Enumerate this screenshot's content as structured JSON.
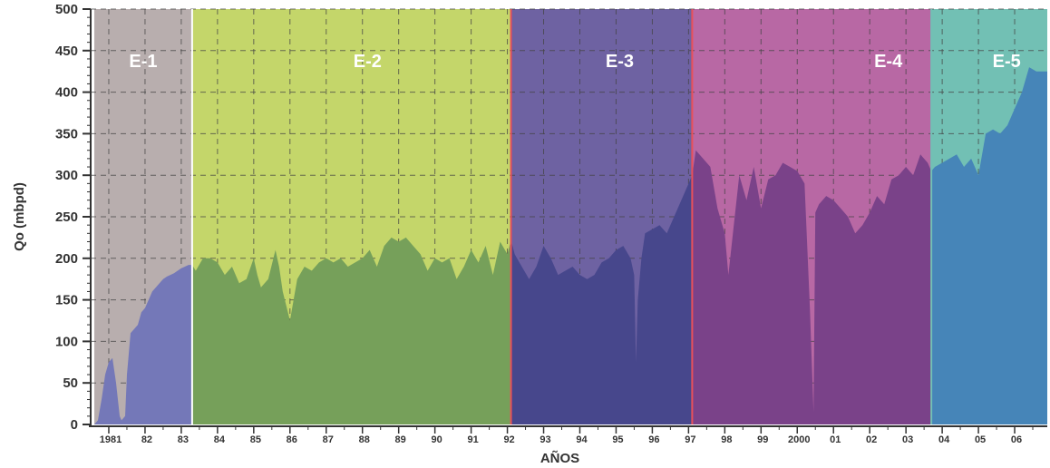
{
  "chart_data": {
    "type": "area",
    "xlabel": "AÑOS",
    "ylabel": "Qo (mbpd)",
    "ylim": [
      0,
      500
    ],
    "xlim": [
      1980.5,
      2006.9
    ],
    "yticks": [
      0,
      50,
      100,
      150,
      200,
      250,
      300,
      350,
      400,
      450,
      500
    ],
    "xticks": [
      {
        "x": 1981,
        "label": "1981"
      },
      {
        "x": 1982,
        "label": "82"
      },
      {
        "x": 1983,
        "label": "83"
      },
      {
        "x": 1984,
        "label": "84"
      },
      {
        "x": 1985,
        "label": "85"
      },
      {
        "x": 1986,
        "label": "86"
      },
      {
        "x": 1987,
        "label": "87"
      },
      {
        "x": 1988,
        "label": "88"
      },
      {
        "x": 1989,
        "label": "89"
      },
      {
        "x": 1990,
        "label": "90"
      },
      {
        "x": 1991,
        "label": "91"
      },
      {
        "x": 1992,
        "label": "92"
      },
      {
        "x": 1993,
        "label": "93"
      },
      {
        "x": 1994,
        "label": "94"
      },
      {
        "x": 1995,
        "label": "95"
      },
      {
        "x": 1996,
        "label": "96"
      },
      {
        "x": 1997,
        "label": "97"
      },
      {
        "x": 1998,
        "label": "98"
      },
      {
        "x": 1999,
        "label": "99"
      },
      {
        "x": 2000,
        "label": "2000"
      },
      {
        "x": 2001,
        "label": "01"
      },
      {
        "x": 2002,
        "label": "02"
      },
      {
        "x": 2003,
        "label": "03"
      },
      {
        "x": 2004,
        "label": "04"
      },
      {
        "x": 2005,
        "label": "05"
      },
      {
        "x": 2006,
        "label": "06"
      }
    ],
    "grid": true,
    "stages": [
      {
        "label": "E-1",
        "x_start": 1980.6,
        "x_end": 1983.3,
        "bg_color": "#b8aeae",
        "area_color": "#7478b8",
        "divider_color": "#ffffff"
      },
      {
        "label": "E-2",
        "x_start": 1983.3,
        "x_end": 1992.1,
        "bg_color": "#c4d66a",
        "area_color": "#76a05a",
        "divider_color": "#e8505a"
      },
      {
        "label": "E-3",
        "x_start": 1992.1,
        "x_end": 1997.1,
        "bg_color": "#6e62a2",
        "area_color": "#47478c",
        "divider_color": "#e8505a"
      },
      {
        "label": "E-4",
        "x_start": 1997.1,
        "x_end": 2003.7,
        "bg_color": "#b868a4",
        "area_color": "#7a4289",
        "divider_color": "#e8505a"
      },
      {
        "label": "E-5",
        "x_start": 2003.7,
        "x_end": 2006.9,
        "bg_color": "#72c0b4",
        "area_color": "#4685b8",
        "divider_color": "#72c0b4"
      }
    ],
    "series": [
      {
        "x": [
          1980.6,
          1980.7,
          1980.8,
          1980.9,
          1981.0,
          1981.1,
          1981.2,
          1981.3,
          1981.35,
          1981.45,
          1981.5,
          1981.6,
          1981.7,
          1981.8,
          1981.9,
          1982.0,
          1982.1,
          1982.2,
          1982.3,
          1982.4,
          1982.5,
          1982.6,
          1982.7,
          1982.8,
          1982.9,
          1983.0,
          1983.1,
          1983.2,
          1983.3,
          1983.4,
          1983.6,
          1983.8,
          1984.0,
          1984.2,
          1984.4,
          1984.6,
          1984.8,
          1985.0,
          1985.1,
          1985.2,
          1985.4,
          1985.6,
          1985.7,
          1985.8,
          1986.0,
          1986.2,
          1986.4,
          1986.6,
          1986.8,
          1987.0,
          1987.2,
          1987.4,
          1987.6,
          1987.8,
          1988.0,
          1988.2,
          1988.4,
          1988.6,
          1988.8,
          1989.0,
          1989.2,
          1989.4,
          1989.6,
          1989.8,
          1990.0,
          1990.2,
          1990.4,
          1990.6,
          1990.8,
          1991.0,
          1991.2,
          1991.4,
          1991.6,
          1991.8,
          1992.0,
          1992.1,
          1992.2,
          1992.4,
          1992.6,
          1992.8,
          1993.0,
          1993.2,
          1993.4,
          1993.6,
          1993.8,
          1994.0,
          1994.2,
          1994.4,
          1994.6,
          1994.8,
          1995.0,
          1995.2,
          1995.4,
          1995.5,
          1995.55,
          1995.6,
          1995.7,
          1995.8,
          1996.0,
          1996.2,
          1996.4,
          1996.6,
          1996.8,
          1997.0,
          1997.1,
          1997.2,
          1997.4,
          1997.6,
          1997.8,
          1998.0,
          1998.1,
          1998.2,
          1998.4,
          1998.6,
          1998.8,
          1999.0,
          1999.2,
          1999.4,
          1999.6,
          1999.8,
          2000.0,
          2000.2,
          2000.35,
          2000.45,
          2000.5,
          2000.6,
          2000.8,
          2001.0,
          2001.2,
          2001.4,
          2001.6,
          2001.8,
          2002.0,
          2002.2,
          2002.4,
          2002.6,
          2002.8,
          2003.0,
          2003.2,
          2003.4,
          2003.6,
          2003.7,
          2003.8,
          2004.0,
          2004.2,
          2004.4,
          2004.6,
          2004.8,
          2005.0,
          2005.2,
          2005.4,
          2005.6,
          2005.8,
          2006.0,
          2006.2,
          2006.4,
          2006.6,
          2006.9
        ],
        "values": [
          0,
          5,
          30,
          60,
          75,
          80,
          50,
          10,
          5,
          10,
          60,
          110,
          115,
          120,
          135,
          140,
          150,
          160,
          165,
          170,
          175,
          178,
          180,
          182,
          185,
          188,
          190,
          192,
          192,
          185,
          200,
          200,
          195,
          180,
          190,
          170,
          175,
          200,
          180,
          165,
          175,
          210,
          190,
          160,
          125,
          175,
          190,
          185,
          195,
          200,
          195,
          200,
          190,
          195,
          200,
          210,
          190,
          215,
          225,
          220,
          225,
          215,
          205,
          185,
          200,
          195,
          200,
          175,
          190,
          210,
          195,
          215,
          180,
          220,
          205,
          222,
          205,
          190,
          175,
          190,
          215,
          200,
          180,
          185,
          190,
          180,
          175,
          180,
          195,
          200,
          210,
          215,
          200,
          180,
          75,
          150,
          200,
          230,
          235,
          240,
          230,
          250,
          270,
          290,
          300,
          330,
          320,
          310,
          260,
          230,
          180,
          220,
          300,
          270,
          310,
          260,
          295,
          300,
          315,
          310,
          305,
          290,
          140,
          15,
          255,
          265,
          275,
          270,
          260,
          250,
          230,
          240,
          255,
          275,
          265,
          295,
          300,
          310,
          300,
          325,
          315,
          305,
          310,
          315,
          320,
          325,
          310,
          320,
          300,
          350,
          355,
          350,
          360,
          380,
          400,
          430,
          425,
          425
        ]
      }
    ]
  }
}
